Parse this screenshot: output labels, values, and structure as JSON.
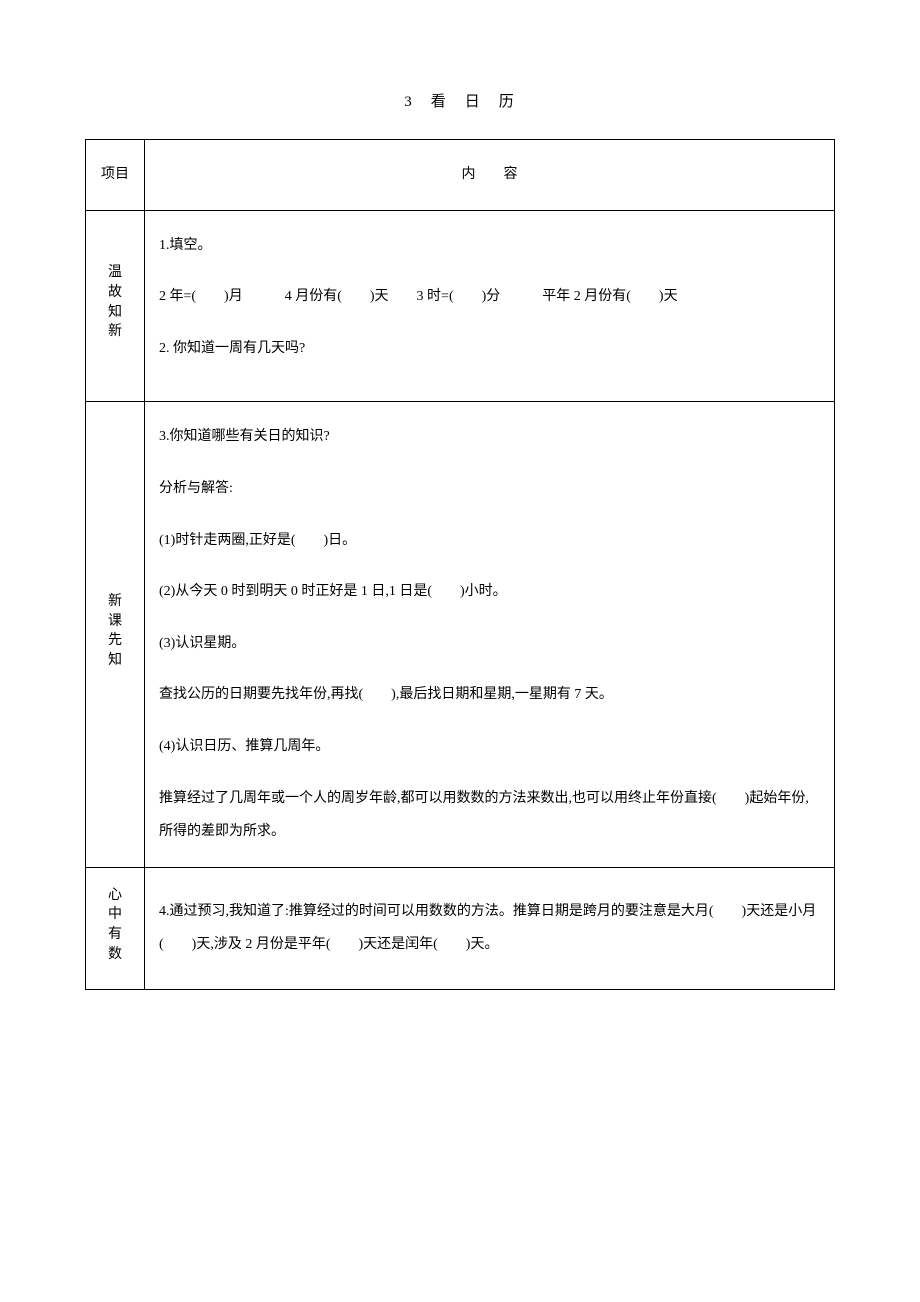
{
  "title": "3　看　日　历",
  "header": {
    "col1": "项目",
    "col2": "内　　容"
  },
  "sections": [
    {
      "side": "温故知新",
      "lines": [
        "1.填空。",
        "2 年=(　　)月　　　4 月份有(　　)天　　3 时=(　　)分　　　平年 2 月份有(　　)天",
        "2. 你知道一周有几天吗?",
        ""
      ]
    },
    {
      "side": "新课先知",
      "lines": [
        "3.你知道哪些有关日的知识?",
        "分析与解答:",
        "(1)时针走两圈,正好是(　　)日。",
        "(2)从今天 0 时到明天 0 时正好是 1 日,1 日是(　　)小时。",
        "(3)认识星期。",
        "查找公历的日期要先找年份,再找(　　),最后找日期和星期,一星期有 7 天。",
        "(4)认识日历、推算几周年。",
        "推算经过了几周年或一个人的周岁年龄,都可以用数数的方法来数出,也可以用终止年份直接(　　)起始年份,所得的差即为所求。"
      ]
    },
    {
      "side": "心中有数",
      "lines": [
        "4.通过预习,我知道了:推算经过的时间可以用数数的方法。推算日期是跨月的要注意是大月(　　)天还是小月(　　)天,涉及 2 月份是平年(　　)天还是闰年(　　)天。"
      ]
    }
  ]
}
